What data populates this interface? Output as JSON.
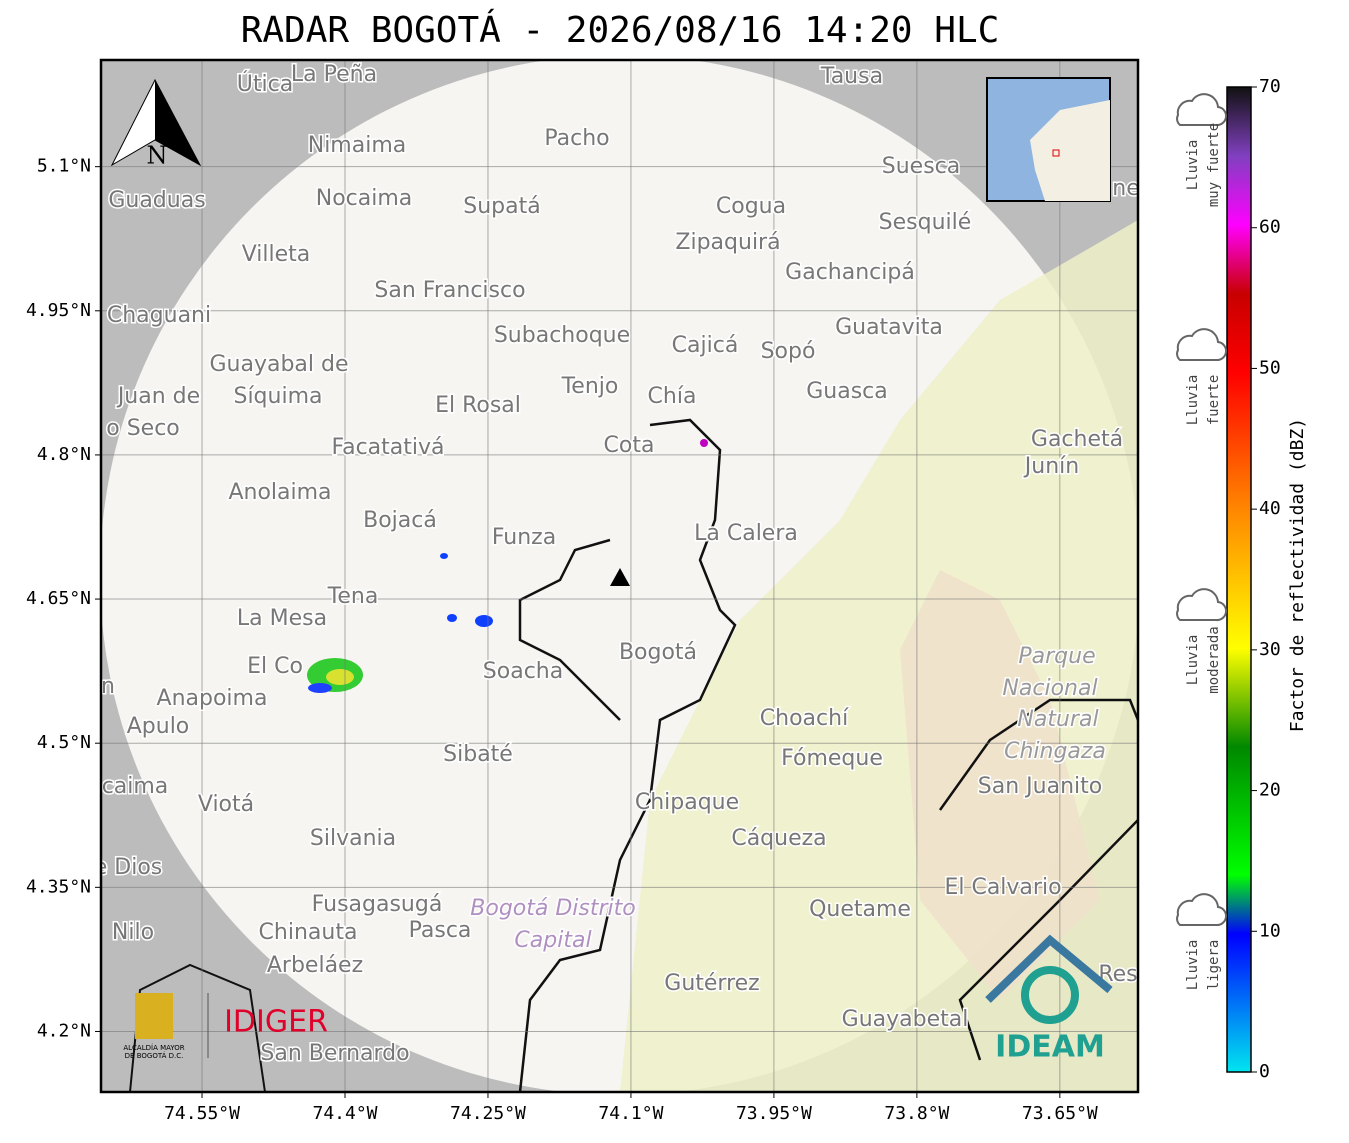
{
  "title": "RADAR BOGOTÁ - 2026/08/16 14:20 HLC",
  "map": {
    "lonlim": [
      -74.656,
      -73.568
    ],
    "latlim": [
      4.137,
      5.211
    ],
    "lon_ticks": [
      {
        "value": -74.55,
        "label": "74.55°W"
      },
      {
        "value": -74.4,
        "label": "74.4°W"
      },
      {
        "value": -74.25,
        "label": "74.25°W"
      },
      {
        "value": -74.1,
        "label": "74.1°W"
      },
      {
        "value": -73.95,
        "label": "73.95°W"
      },
      {
        "value": -73.8,
        "label": "73.8°W"
      },
      {
        "value": -73.65,
        "label": "73.65°W"
      }
    ],
    "lat_ticks": [
      {
        "value": 4.2,
        "label": "4.2°N"
      },
      {
        "value": 4.35,
        "label": "4.35°N"
      },
      {
        "value": 4.5,
        "label": "4.5°N"
      },
      {
        "value": 4.65,
        "label": "4.65°N"
      },
      {
        "value": 4.8,
        "label": "4.8°N"
      },
      {
        "value": 4.95,
        "label": "4.95°N"
      },
      {
        "value": 5.1,
        "label": "5.1°N"
      }
    ],
    "north": "N",
    "places": [
      "La Peña",
      "Útica",
      "Tausa",
      "Pacho",
      "Nimaima",
      "Guaduas",
      "Nocaima",
      "Supatá",
      "Cogua",
      "Suesca",
      "Sesquilé",
      "Zipaquirá",
      "Villeta",
      "Gachancipá",
      "San Francisco",
      "Chaguani",
      "Guatavita",
      "Subachoque",
      "Cajicá",
      "Sopó",
      "Guayabal de",
      "Síquima",
      "Tenjo",
      "Juan de",
      "Guasca",
      "Chía",
      "El Rosal",
      "o Seco",
      "Gachetá",
      "Junín",
      "Facatativá",
      "Cota",
      "Anolaima",
      "Bojacá",
      "Funza",
      "La Calera",
      "Tena",
      "La Mesa",
      "Parque",
      "Nacional",
      "Natural",
      "Chingaza",
      "San Juanito",
      "El Co",
      "Soacha",
      "Bogotá",
      "Anapoima",
      "Apulo",
      "Choachí",
      "Fómeque",
      "Sibaté",
      "caima",
      "Viotá",
      "Chipaque",
      "Silvania",
      "Cáqueza",
      "e Dios",
      "El Calvario",
      "Fusagasugá",
      "Bogotá Distrito",
      "Capital",
      "Quetame",
      "Nilo",
      "Chinauta",
      "Pasca",
      "Arbeláez",
      "Gutérrez",
      "Res",
      "Guayabetal",
      "San Bernardo",
      "n",
      "ne"
    ]
  },
  "logos": {
    "alcaldia": [
      "ALCALDÍA MAYOR",
      "DE BOGOTÁ D.C."
    ],
    "idiger": "IDIGER",
    "ideam": "IDEAM"
  },
  "colorbar": {
    "label": "Factor de reflectividad (dBZ)",
    "lim": [
      0,
      70
    ],
    "ticks": [
      0,
      10,
      20,
      30,
      40,
      50,
      60,
      70
    ]
  },
  "legend": [
    [
      "Lluvia",
      "muy fuerte"
    ],
    [
      "Lluvia",
      "fuerte"
    ],
    [
      "Lluvia",
      "moderada"
    ],
    [
      "Lluvia",
      "ligera"
    ]
  ]
}
